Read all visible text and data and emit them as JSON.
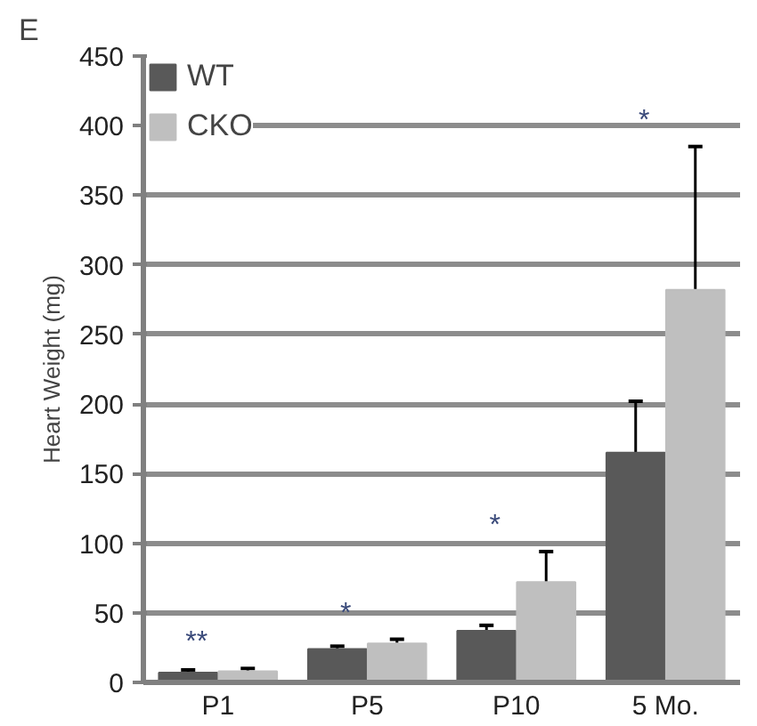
{
  "chart_data": {
    "type": "bar",
    "ylabel": "Heart Weight (mg)",
    "categories": [
      "P1",
      "P5",
      "P10",
      "5 Mo."
    ],
    "series": [
      {
        "name": "WT",
        "color": "#595959",
        "values": [
          7,
          24,
          37,
          165
        ],
        "errors": [
          2,
          2,
          4,
          37
        ]
      },
      {
        "name": "CKO",
        "color": "#bfbfbf",
        "values": [
          8,
          28,
          72,
          282
        ],
        "errors": [
          2,
          3,
          22,
          103
        ]
      }
    ],
    "ylim": [
      0,
      450
    ],
    "yticks": [
      0,
      50,
      100,
      150,
      200,
      250,
      300,
      350,
      400,
      450
    ],
    "grid": "y",
    "legend": "top left",
    "annotations": [
      "E",
      "**",
      "*",
      "*",
      "*"
    ]
  }
}
